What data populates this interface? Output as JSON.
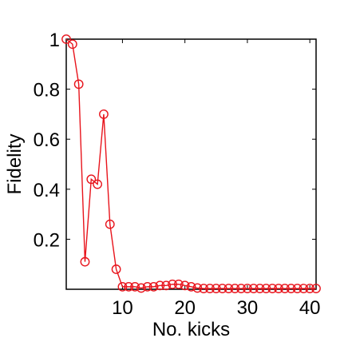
{
  "chart_data": {
    "type": "line",
    "title": "",
    "xlabel": "No. kicks",
    "ylabel": "Fidelity",
    "xlim": [
      1,
      41
    ],
    "ylim": [
      0,
      1
    ],
    "xticks": [
      10,
      20,
      30,
      40
    ],
    "xtick_labels": [
      "10",
      "20",
      "30",
      "40"
    ],
    "yticks": [
      0.2,
      0.4,
      0.6,
      0.8,
      1
    ],
    "ytick_labels": [
      "0.2",
      "0.4",
      "0.6",
      "0.8",
      "1"
    ],
    "grid": false,
    "legend": "none",
    "series": [
      {
        "color": "#e8141c",
        "marker": "circle-open",
        "x": [
          1,
          2,
          3,
          4,
          5,
          6,
          7,
          8,
          9,
          10,
          11,
          12,
          13,
          14,
          15,
          16,
          17,
          18,
          19,
          20,
          21,
          22,
          23,
          24,
          25,
          26,
          27,
          28,
          29,
          30,
          31,
          32,
          33,
          34,
          35,
          36,
          37,
          38,
          39,
          40,
          41
        ],
        "y": [
          1.0,
          0.98,
          0.82,
          0.11,
          0.44,
          0.42,
          0.7,
          0.26,
          0.08,
          0.01,
          0.01,
          0.01,
          0.005,
          0.01,
          0.01,
          0.015,
          0.015,
          0.02,
          0.02,
          0.015,
          0.01,
          0.005,
          0.003,
          0.003,
          0.003,
          0.003,
          0.003,
          0.003,
          0.003,
          0.003,
          0.003,
          0.003,
          0.003,
          0.003,
          0.003,
          0.003,
          0.003,
          0.003,
          0.003,
          0.003,
          0.003
        ]
      }
    ]
  }
}
